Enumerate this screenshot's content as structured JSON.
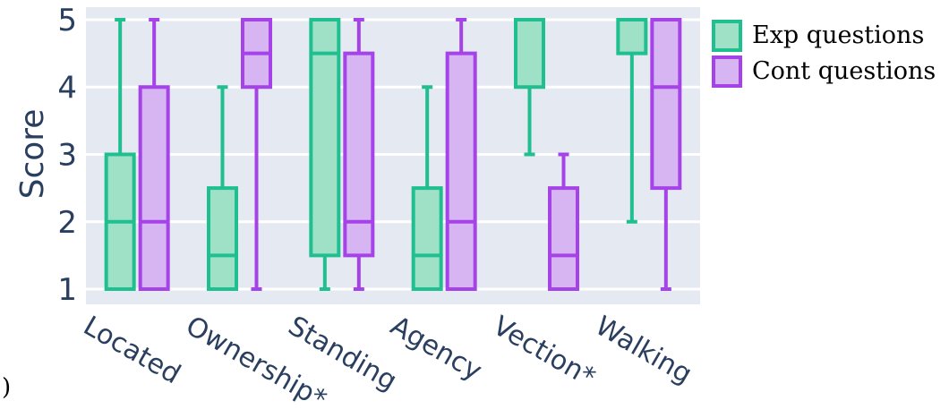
{
  "chart_data": {
    "type": "box",
    "ylabel": "Score",
    "ylim": [
      1,
      5
    ],
    "yticks": [
      "1",
      "2",
      "3",
      "4",
      "5"
    ],
    "categories": [
      "Located",
      "Ownership*",
      "Standing",
      "Agency",
      "Vection*",
      "Walking"
    ],
    "grid": true,
    "legend_position": "top-right",
    "series": [
      {
        "name": "Exp questions",
        "color": "#1fbf8f",
        "fill": "#9fe1c7",
        "boxes": [
          {
            "min": 1,
            "q1": 1,
            "median": 2,
            "q3": 3,
            "max": 5
          },
          {
            "min": 1,
            "q1": 1,
            "median": 1.5,
            "q3": 2.5,
            "max": 4
          },
          {
            "min": 1,
            "q1": 1.5,
            "median": 4.5,
            "q3": 5,
            "max": 5
          },
          {
            "min": 1,
            "q1": 1,
            "median": 1.5,
            "q3": 2.5,
            "max": 4
          },
          {
            "min": 3,
            "q1": 4,
            "median": 5,
            "q3": 5,
            "max": 5
          },
          {
            "min": 2,
            "q1": 4.5,
            "median": 5,
            "q3": 5,
            "max": 5
          }
        ]
      },
      {
        "name": "Cont questions",
        "color": "#a542e8",
        "fill": "#d7b4f2",
        "boxes": [
          {
            "min": 1,
            "q1": 1,
            "median": 2,
            "q3": 4,
            "max": 5
          },
          {
            "min": 1,
            "q1": 4,
            "median": 4.5,
            "q3": 5,
            "max": 5
          },
          {
            "min": 1,
            "q1": 1.5,
            "median": 2,
            "q3": 4.5,
            "max": 5
          },
          {
            "min": 1,
            "q1": 1,
            "median": 2,
            "q3": 4.5,
            "max": 5
          },
          {
            "min": 1,
            "q1": 1,
            "median": 1.5,
            "q3": 2.5,
            "max": 3
          },
          {
            "min": 1,
            "q1": 2.5,
            "median": 4,
            "q3": 5,
            "max": 5
          }
        ]
      }
    ]
  },
  "stray_mark": ")"
}
